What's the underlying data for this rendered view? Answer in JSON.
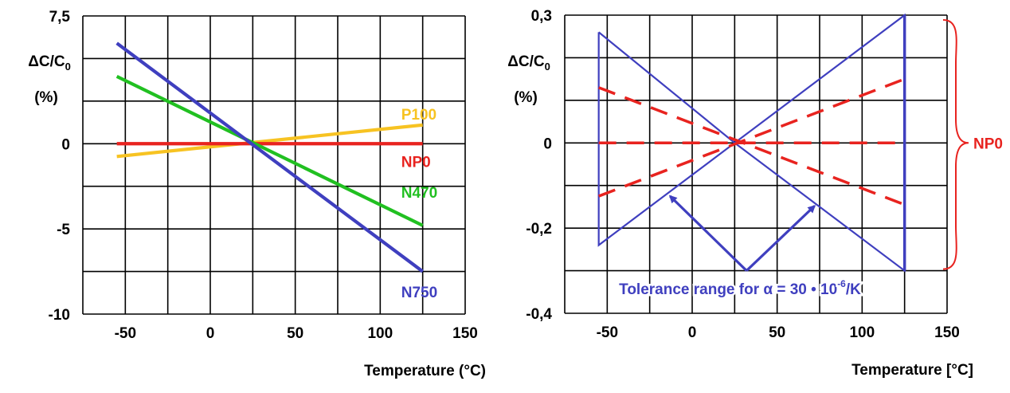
{
  "chart_data": [
    {
      "type": "line",
      "title": "",
      "ylabel_main": "ΔC/C",
      "ylabel_sub": "0",
      "ylabel_unit": "(%)",
      "xlabel": "Temperature (°C)",
      "xlim": [
        -75,
        150
      ],
      "ylim": [
        -10,
        7.5
      ],
      "x_grid_step": 25,
      "y_grid_step": 2.5,
      "x_ticks": [
        {
          "value": -50,
          "label": "-50"
        },
        {
          "value": 0,
          "label": "0"
        },
        {
          "value": 50,
          "label": "50"
        },
        {
          "value": 100,
          "label": "100"
        },
        {
          "value": 150,
          "label": "150"
        }
      ],
      "y_ticks": [
        {
          "value": 7.5,
          "label": "7,5"
        },
        {
          "value": 0,
          "label": "0"
        },
        {
          "value": -5,
          "label": "-5"
        },
        {
          "value": -10,
          "label": "-10"
        }
      ],
      "grid": true,
      "series": [
        {
          "name": "P100",
          "color": "#f7c322",
          "x": [
            -55,
            125
          ],
          "y": [
            -0.75,
            1.1
          ]
        },
        {
          "name": "NP0",
          "color": "#e8231f",
          "x": [
            -55,
            125
          ],
          "y": [
            0,
            0
          ]
        },
        {
          "name": "N470",
          "color": "#21c021",
          "x": [
            -55,
            125
          ],
          "y": [
            3.95,
            -4.8
          ]
        },
        {
          "name": "N750",
          "color": "#3f3fbf",
          "x": [
            -55,
            125
          ],
          "y": [
            5.9,
            -7.5
          ]
        }
      ],
      "series_labels": [
        {
          "text": "P100",
          "color": "#f7c322",
          "x": 118,
          "y": 1.75
        },
        {
          "text": "NP0",
          "color": "#e8231f",
          "x": 118,
          "y": -1.05
        },
        {
          "text": "N470",
          "color": "#21c021",
          "x": 118,
          "y": -2.85
        },
        {
          "text": "N750",
          "color": "#3f3fbf",
          "x": 118,
          "y": -8.7
        }
      ]
    },
    {
      "type": "line",
      "title": "",
      "ylabel_main": "ΔC/C",
      "ylabel_sub": "0",
      "ylabel_unit": "(%)",
      "xlabel": "Temperature [°C]",
      "xlim": [
        -75,
        150
      ],
      "ylim": [
        -0.4,
        0.3
      ],
      "x_grid_step": 25,
      "y_grid_step": 0.1,
      "x_ticks": [
        {
          "value": -50,
          "label": "-50"
        },
        {
          "value": 0,
          "label": "0"
        },
        {
          "value": 50,
          "label": "50"
        },
        {
          "value": 100,
          "label": "100"
        },
        {
          "value": 150,
          "label": "150"
        }
      ],
      "y_ticks": [
        {
          "value": 0.3,
          "label": "0,3"
        },
        {
          "value": 0,
          "label": "0"
        },
        {
          "value": -0.2,
          "label": "-0,2"
        },
        {
          "value": -0.4,
          "label": "-0,4"
        }
      ],
      "grid": true,
      "tolerance_envelope": {
        "color": "#3f3fbf",
        "x": [
          -55,
          -55,
          25,
          125,
          125,
          25,
          -55
        ],
        "y": [
          0.26,
          -0.24,
          0,
          -0.3,
          0.3,
          0,
          0.26
        ]
      },
      "dashed_series": [
        {
          "color": "#e8231f",
          "x": [
            -55,
            125
          ],
          "y": [
            0.13,
            -0.145
          ]
        },
        {
          "color": "#e8231f",
          "x": [
            -55,
            125
          ],
          "y": [
            0,
            0
          ]
        },
        {
          "color": "#e8231f",
          "x": [
            -55,
            125
          ],
          "y": [
            -0.125,
            0.15
          ]
        }
      ],
      "arrows": [
        {
          "from": [
            32,
            -0.3
          ],
          "to": [
            -13,
            -0.125
          ]
        },
        {
          "from": [
            32,
            -0.3
          ],
          "to": [
            72,
            -0.148
          ]
        }
      ],
      "annotation": {
        "prefix": "Tolerance range for α = 30 • 10",
        "superscript": "-6",
        "suffix": "/K",
        "color": "#3f3fbf",
        "x": 30,
        "y": -0.342
      },
      "brace": {
        "label": "NP0",
        "color": "#e8231f",
        "y_top": 0.3,
        "y_bottom": -0.3
      }
    }
  ]
}
